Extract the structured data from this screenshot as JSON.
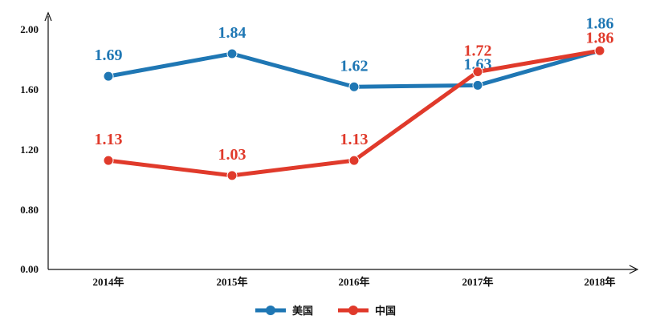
{
  "chart_data": {
    "type": "line",
    "categories": [
      "2014年",
      "2015年",
      "2016年",
      "2017年",
      "2018年"
    ],
    "y_ticks": [
      "0.00",
      "0.80",
      "1.20",
      "1.60",
      "2.00"
    ],
    "series": [
      {
        "name": "美国",
        "color": "#1f77b4",
        "values": [
          1.69,
          1.84,
          1.62,
          1.63,
          1.86
        ],
        "labels": [
          "1.69",
          "1.84",
          "1.62",
          "1.63",
          "1.86"
        ]
      },
      {
        "name": "中国",
        "color": "#e03a2b",
        "values": [
          1.13,
          1.03,
          1.13,
          1.72,
          1.86
        ],
        "labels": [
          "1.13",
          "1.03",
          "1.13",
          "1.72",
          "1.86"
        ]
      }
    ],
    "legend_position": "bottom-center",
    "grid": false,
    "xlabel": "",
    "ylabel": ""
  }
}
